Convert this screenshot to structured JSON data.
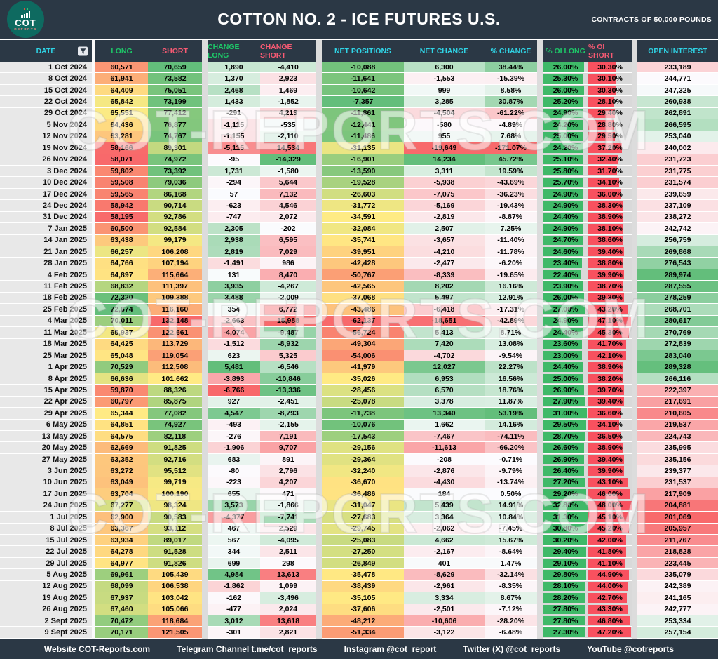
{
  "header": {
    "title": "COTTON NO. 2 - ICE FUTURES U.S.",
    "unit": "CONTRACTS OF 50,000 POUNDS",
    "logo": {
      "line1": "COT",
      "line2": "REPORTS"
    }
  },
  "watermark": {
    "text": "COT-REPORTS.COM"
  },
  "colors": {
    "header_bg": "#2b3845",
    "accent_cyan": "#2fd4e6",
    "accent_green": "#1dc868",
    "accent_red": "#f85a73",
    "scale_red": "#f8696b",
    "scale_yellow": "#ffeb84",
    "scale_green": "#63be7b",
    "scale_white": "#fcfcff",
    "bar_green": "#3fb968",
    "bar_red": "#f8515f",
    "date_col_bg": "#e8e8e8",
    "logo_bg": "#0e6a60"
  },
  "chart_data": {
    "type": "table",
    "title": "COTTON NO. 2 - ICE FUTURES U.S.",
    "subtitle": "CONTRACTS OF 50,000 POUNDS",
    "columns": [
      "DATE",
      "LONG",
      "SHORT",
      "CHANGE LONG",
      "CHANGE SHORT",
      "NET POSITIONS",
      "NET CHANGE",
      "% CHANGE",
      "% OI LONG",
      "% OI SHORT",
      "OPEN INTEREST"
    ],
    "column_accents": [
      "cyan",
      "green",
      "red",
      "green",
      "red",
      "cyan",
      "cyan",
      "cyan",
      "green",
      "red",
      "cyan"
    ],
    "rows": [
      [
        "1 Oct 2024",
        "60,571",
        "70,659",
        "1,890",
        "-4,410",
        "-10,088",
        "6,300",
        "38.44%",
        "26.00%",
        "30.30%",
        "233,189"
      ],
      [
        "8 Oct 2024",
        "61,941",
        "73,582",
        "1,370",
        "2,923",
        "-11,641",
        "-1,553",
        "-15.39%",
        "25.30%",
        "30.10%",
        "244,771"
      ],
      [
        "15 Oct 2024",
        "64,409",
        "75,051",
        "2,468",
        "1,469",
        "-10,642",
        "999",
        "8.58%",
        "26.00%",
        "30.30%",
        "247,325"
      ],
      [
        "22 Oct 2024",
        "65,842",
        "73,199",
        "1,433",
        "-1,852",
        "-7,357",
        "3,285",
        "30.87%",
        "25.20%",
        "28.10%",
        "260,938"
      ],
      [
        "29 Oct 2024",
        "65,551",
        "77,412",
        "-291",
        "4,213",
        "-11,861",
        "-4,504",
        "-61.22%",
        "24.90%",
        "29.40%",
        "262,891"
      ],
      [
        "5 Nov 2024",
        "64,436",
        "76,877",
        "-1,115",
        "-535",
        "-12,441",
        "-580",
        "-4.89%",
        "24.20%",
        "28.80%",
        "266,595"
      ],
      [
        "12 Nov 2024",
        "63,281",
        "74,767",
        "-1,155",
        "-2,110",
        "-11,486",
        "955",
        "7.68%",
        "25.00%",
        "29.50%",
        "253,040"
      ],
      [
        "19 Nov 2024",
        "58,166",
        "89,301",
        "-5,115",
        "14,534",
        "-31,135",
        "-19,649",
        "-171.07%",
        "24.20%",
        "37.20%",
        "240,002"
      ],
      [
        "26 Nov 2024",
        "58,071",
        "74,972",
        "-95",
        "-14,329",
        "-16,901",
        "14,234",
        "45.72%",
        "25.10%",
        "32.40%",
        "231,723"
      ],
      [
        "3 Dec 2024",
        "59,802",
        "73,392",
        "1,731",
        "-1,580",
        "-13,590",
        "3,311",
        "19.59%",
        "25.80%",
        "31.70%",
        "231,775"
      ],
      [
        "10 Dec 2024",
        "59,508",
        "79,036",
        "-294",
        "5,644",
        "-19,528",
        "-5,938",
        "-43.69%",
        "25.70%",
        "34.10%",
        "231,574"
      ],
      [
        "17 Dec 2024",
        "59,565",
        "86,168",
        "57",
        "7,132",
        "-26,603",
        "-7,075",
        "-36.23%",
        "24.90%",
        "36.00%",
        "239,659"
      ],
      [
        "24 Dec 2024",
        "58,942",
        "90,714",
        "-623",
        "4,546",
        "-31,772",
        "-5,169",
        "-19.43%",
        "24.90%",
        "38.30%",
        "237,109"
      ],
      [
        "31 Dec 2024",
        "58,195",
        "92,786",
        "-747",
        "2,072",
        "-34,591",
        "-2,819",
        "-8.87%",
        "24.40%",
        "38.90%",
        "238,272"
      ],
      [
        "7 Jan 2025",
        "60,500",
        "92,584",
        "2,305",
        "-202",
        "-32,084",
        "2,507",
        "7.25%",
        "24.90%",
        "38.10%",
        "242,742"
      ],
      [
        "14 Jan 2025",
        "63,438",
        "99,179",
        "2,938",
        "6,595",
        "-35,741",
        "-3,657",
        "-11.40%",
        "24.70%",
        "38.60%",
        "256,759"
      ],
      [
        "21 Jan 2025",
        "66,257",
        "106,208",
        "2,819",
        "7,029",
        "-39,951",
        "-4,210",
        "-11.78%",
        "24.60%",
        "39.40%",
        "269,868"
      ],
      [
        "28 Jan 2025",
        "64,766",
        "107,194",
        "-1,491",
        "986",
        "-42,428",
        "-2,477",
        "-6.20%",
        "23.40%",
        "38.80%",
        "276,543"
      ],
      [
        "4 Feb 2025",
        "64,897",
        "115,664",
        "131",
        "8,470",
        "-50,767",
        "-8,339",
        "-19.65%",
        "22.40%",
        "39.90%",
        "289,974"
      ],
      [
        "11 Feb 2025",
        "68,832",
        "111,397",
        "3,935",
        "-4,267",
        "-42,565",
        "8,202",
        "16.16%",
        "23.90%",
        "38.70%",
        "287,555"
      ],
      [
        "18 Feb 2025",
        "72,320",
        "109,388",
        "3,488",
        "-2,009",
        "-37,068",
        "5,497",
        "12.91%",
        "26.00%",
        "39.30%",
        "278,259"
      ],
      [
        "25 Feb 2025",
        "72,674",
        "116,160",
        "354",
        "6,772",
        "-43,486",
        "-6,418",
        "-17.31%",
        "27.00%",
        "43.20%",
        "268,701"
      ],
      [
        "4 Mar 2025",
        "70,011",
        "132,148",
        "-2,663",
        "15,988",
        "-62,137",
        "-18,651",
        "-42.89%",
        "24.90%",
        "47.10%",
        "280,617"
      ],
      [
        "11 Mar 2025",
        "65,937",
        "122,661",
        "-4,074",
        "-9,487",
        "-56,724",
        "5,413",
        "8.71%",
        "24.40%",
        "45.30%",
        "270,769"
      ],
      [
        "18 Mar 2025",
        "64,425",
        "113,729",
        "-1,512",
        "-8,932",
        "-49,304",
        "7,420",
        "13.08%",
        "23.60%",
        "41.70%",
        "272,839"
      ],
      [
        "25 Mar 2025",
        "65,048",
        "119,054",
        "623",
        "5,325",
        "-54,006",
        "-4,702",
        "-9.54%",
        "23.00%",
        "42.10%",
        "283,040"
      ],
      [
        "1 Apr 2025",
        "70,529",
        "112,508",
        "5,481",
        "-6,546",
        "-41,979",
        "12,027",
        "22.27%",
        "24.40%",
        "38.90%",
        "289,328"
      ],
      [
        "8 Apr 2025",
        "66,636",
        "101,662",
        "-3,893",
        "-10,846",
        "-35,026",
        "6,953",
        "16.56%",
        "25.00%",
        "38.20%",
        "266,116"
      ],
      [
        "15 Apr 2025",
        "59,870",
        "88,326",
        "-6,766",
        "-13,336",
        "-28,456",
        "6,570",
        "18.76%",
        "26.90%",
        "39.70%",
        "222,397"
      ],
      [
        "22 Apr 2025",
        "60,797",
        "85,875",
        "927",
        "-2,451",
        "-25,078",
        "3,378",
        "11.87%",
        "27.90%",
        "39.40%",
        "217,691"
      ],
      [
        "29 Apr 2025",
        "65,344",
        "77,082",
        "4,547",
        "-8,793",
        "-11,738",
        "13,340",
        "53.19%",
        "31.00%",
        "36.60%",
        "210,605"
      ],
      [
        "6 May 2025",
        "64,851",
        "74,927",
        "-493",
        "-2,155",
        "-10,076",
        "1,662",
        "14.16%",
        "29.50%",
        "34.10%",
        "219,537"
      ],
      [
        "13 May 2025",
        "64,575",
        "82,118",
        "-276",
        "7,191",
        "-17,543",
        "-7,467",
        "-74.11%",
        "28.70%",
        "36.50%",
        "224,743"
      ],
      [
        "20 May 2025",
        "62,669",
        "91,825",
        "-1,906",
        "9,707",
        "-29,156",
        "-11,613",
        "-66.20%",
        "26.60%",
        "38.90%",
        "235,995"
      ],
      [
        "27 May 2025",
        "63,352",
        "92,716",
        "683",
        "891",
        "-29,364",
        "-208",
        "-0.71%",
        "26.90%",
        "39.40%",
        "235,156"
      ],
      [
        "3 Jun 2025",
        "63,272",
        "95,512",
        "-80",
        "2,796",
        "-32,240",
        "-2,876",
        "-9.79%",
        "26.40%",
        "39.90%",
        "239,377"
      ],
      [
        "10 Jun 2025",
        "63,049",
        "99,719",
        "-223",
        "4,207",
        "-36,670",
        "-4,430",
        "-13.74%",
        "27.20%",
        "43.10%",
        "231,537"
      ],
      [
        "17 Jun 2025",
        "63,704",
        "100,190",
        "655",
        "471",
        "-36,486",
        "184",
        "0.50%",
        "29.20%",
        "46.00%",
        "217,909"
      ],
      [
        "24 Jun 2025",
        "67,277",
        "98,324",
        "3,573",
        "-1,866",
        "-31,047",
        "5,439",
        "14.91%",
        "32.80%",
        "48.00%",
        "204,881"
      ],
      [
        "1 Jul 2025",
        "62,900",
        "90,583",
        "-4,377",
        "-7,741",
        "-27,683",
        "3,364",
        "10.84%",
        "31.30%",
        "45.10%",
        "201,069"
      ],
      [
        "8 Jul 2025",
        "63,367",
        "93,112",
        "467",
        "2,529",
        "-29,745",
        "-2,062",
        "-7.45%",
        "30.80%",
        "45.20%",
        "205,957"
      ],
      [
        "15 Jul 2025",
        "63,934",
        "89,017",
        "567",
        "-4,095",
        "-25,083",
        "4,662",
        "15.67%",
        "30.20%",
        "42.00%",
        "211,767"
      ],
      [
        "22 Jul 2025",
        "64,278",
        "91,528",
        "344",
        "2,511",
        "-27,250",
        "-2,167",
        "-8.64%",
        "29.40%",
        "41.80%",
        "218,828"
      ],
      [
        "29 Jul 2025",
        "64,977",
        "91,826",
        "699",
        "298",
        "-26,849",
        "401",
        "1.47%",
        "29.10%",
        "41.10%",
        "223,445"
      ],
      [
        "5 Aug 2025",
        "69,961",
        "105,439",
        "4,984",
        "13,613",
        "-35,478",
        "-8,629",
        "-32.14%",
        "29.80%",
        "44.90%",
        "235,079"
      ],
      [
        "12 Aug 2025",
        "68,099",
        "106,538",
        "-1,862",
        "1,099",
        "-38,439",
        "-2,961",
        "-8.35%",
        "28.10%",
        "44.00%",
        "242,389"
      ],
      [
        "19 Aug 2025",
        "67,937",
        "103,042",
        "-162",
        "-3,496",
        "-35,105",
        "3,334",
        "8.67%",
        "28.20%",
        "42.70%",
        "241,165"
      ],
      [
        "26 Aug 2025",
        "67,460",
        "105,066",
        "-477",
        "2,024",
        "-37,606",
        "-2,501",
        "-7.12%",
        "27.80%",
        "43.30%",
        "242,777"
      ],
      [
        "2 Sept 2025",
        "70,472",
        "118,684",
        "3,012",
        "13,618",
        "-48,212",
        "-10,606",
        "-28.20%",
        "27.80%",
        "46.80%",
        "253,334"
      ],
      [
        "9 Sept 2025",
        "70,171",
        "121,505",
        "-301",
        "2,821",
        "-51,334",
        "-3,122",
        "-6.48%",
        "27.30%",
        "47.20%",
        "257,154"
      ]
    ]
  },
  "footer": {
    "items": [
      "Website COT-Reports.com",
      "Telegram Channel t.me/cot_reports",
      "Instagram @cot_report",
      "Twitter (X) @cot_reports",
      "YouTube @cotreports"
    ]
  }
}
